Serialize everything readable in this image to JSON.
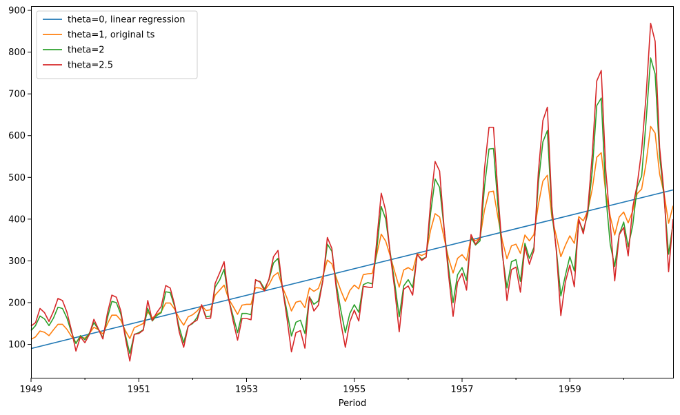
{
  "chart_data": {
    "type": "line",
    "title": "",
    "xlabel": "Period",
    "ylabel": "",
    "x_range": [
      1949.0,
      1960.917
    ],
    "ylim": [
      20,
      910
    ],
    "x_ticks": [
      {
        "value": 1949,
        "label": "1949"
      },
      {
        "value": 1951,
        "label": "1951"
      },
      {
        "value": 1953,
        "label": "1953"
      },
      {
        "value": 1955,
        "label": "1955"
      },
      {
        "value": 1957,
        "label": "1957"
      },
      {
        "value": 1959,
        "label": "1959"
      }
    ],
    "x_minor_ticks": [
      1950,
      1952,
      1954,
      1956,
      1958,
      1960
    ],
    "y_ticks": [
      100,
      200,
      300,
      400,
      500,
      600,
      700,
      800,
      900
    ],
    "grid": false,
    "legend_position": "top-left",
    "x_start_year": 1949,
    "x_step": "monthly",
    "series": [
      {
        "name": "theta=0, linear regression",
        "color": "#1f77b4",
        "style": "linear",
        "start_value": 90,
        "end_value": 470
      },
      {
        "name": "theta=1, original ts",
        "color": "#ff7f0e",
        "values": [
          112,
          118,
          132,
          129,
          121,
          135,
          148,
          148,
          136,
          119,
          104,
          118,
          115,
          126,
          141,
          135,
          125,
          149,
          170,
          170,
          158,
          133,
          114,
          140,
          145,
          150,
          178,
          163,
          172,
          178,
          199,
          199,
          184,
          162,
          146,
          166,
          171,
          180,
          193,
          181,
          183,
          218,
          230,
          242,
          209,
          191,
          172,
          194,
          196,
          196,
          236,
          235,
          229,
          243,
          264,
          272,
          237,
          211,
          180,
          201,
          204,
          188,
          235,
          227,
          234,
          264,
          302,
          293,
          259,
          229,
          203,
          229,
          242,
          233,
          267,
          269,
          270,
          315,
          364,
          347,
          312,
          274,
          237,
          278,
          284,
          277,
          317,
          313,
          318,
          374,
          413,
          405,
          355,
          306,
          271,
          306,
          315,
          301,
          356,
          348,
          355,
          422,
          465,
          467,
          404,
          347,
          305,
          336,
          340,
          318,
          362,
          348,
          363,
          435,
          491,
          505,
          404,
          359,
          310,
          337,
          360,
          342,
          406,
          396,
          420,
          472,
          548,
          559,
          463,
          407,
          362,
          405,
          417,
          391,
          419,
          461,
          472,
          535,
          622,
          606,
          508,
          461,
          390,
          432
        ]
      },
      {
        "name": "theta=2",
        "color": "#2ca02c",
        "values": [
          133,
          145,
          168,
          161,
          145,
          163,
          189,
          186,
          163,
          129,
          102,
          121,
          111,
          127,
          152,
          136,
          116,
          163,
          203,
          200,
          172,
          123,
          78,
          124,
          128,
          135,
          186,
          156,
          169,
          176,
          226,
          224,
          190,
          141,
          104,
          144,
          150,
          165,
          193,
          166,
          168,
          237,
          254,
          280,
          208,
          168,
          128,
          174,
          174,
          171,
          253,
          251,
          233,
          255,
          295,
          306,
          234,
          179,
          120,
          153,
          158,
          126,
          214,
          196,
          204,
          254,
          340,
          323,
          244,
          182,
          128,
          174,
          195,
          177,
          243,
          248,
          245,
          326,
          430,
          400,
          320,
          247,
          166,
          240,
          255,
          236,
          315,
          304,
          309,
          415,
          496,
          476,
          377,
          282,
          200,
          267,
          284,
          253,
          356,
          338,
          348,
          478,
          568,
          569,
          431,
          313,
          235,
          298,
          303,
          251,
          342,
          306,
          332,
          487,
          585,
          612,
          415,
          327,
          216,
          265,
          310,
          276,
          396,
          372,
          413,
          516,
          672,
          690,
          459,
          340,
          287,
          363,
          393,
          334,
          384,
          476,
          503,
          637,
          786,
          748,
          552,
          451,
          316,
          390
        ]
      },
      {
        "name": "theta=2.5",
        "color": "#d62728",
        "values": [
          144,
          152,
          186,
          176,
          155,
          179,
          210,
          205,
          177,
          134,
          84,
          118,
          104,
          124,
          160,
          137,
          113,
          174,
          218,
          213,
          180,
          116,
          60,
          124,
          126,
          134,
          205,
          157,
          176,
          191,
          241,
          235,
          194,
          130,
          93,
          143,
          152,
          158,
          195,
          162,
          163,
          246,
          271,
          298,
          210,
          157,
          110,
          162,
          162,
          159,
          255,
          249,
          228,
          257,
          310,
          325,
          235,
          163,
          82,
          128,
          133,
          91,
          214,
          180,
          194,
          252,
          356,
          330,
          232,
          152,
          93,
          154,
          182,
          156,
          239,
          237,
          236,
          348,
          462,
          420,
          316,
          232,
          130,
          232,
          240,
          218,
          316,
          301,
          309,
          441,
          538,
          515,
          379,
          266,
          167,
          249,
          270,
          230,
          363,
          340,
          354,
          521,
          620,
          620,
          460,
          320,
          205,
          279,
          285,
          225,
          334,
          292,
          325,
          513,
          636,
          668,
          431,
          323,
          169,
          249,
          290,
          238,
          400,
          365,
          423,
          555,
          731,
          756,
          518,
          390,
          252,
          363,
          380,
          312,
          428,
          482,
          565,
          697,
          869,
          826,
          572,
          461,
          274,
          400
        ]
      }
    ]
  }
}
